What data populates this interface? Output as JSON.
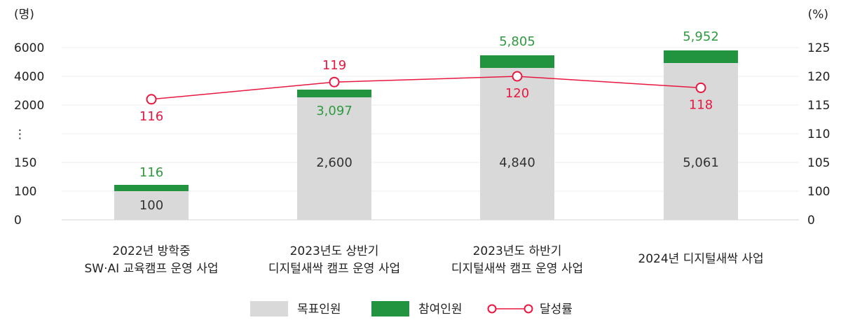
{
  "chart_data": {
    "type": "bar",
    "y_unit_left": "(명)",
    "y_unit_right": "(%)",
    "left_ticks": [
      "6000",
      "4000",
      "2000",
      "⋮",
      "150",
      "100",
      "0"
    ],
    "right_ticks": [
      "125",
      "120",
      "115",
      "110",
      "105",
      "100",
      "0"
    ],
    "y_axis_break": true,
    "grid": true,
    "legend_position": "bottom-center",
    "categories": [
      [
        "2022년 방학중",
        "SW·AI 교육캠프 운영 사업"
      ],
      [
        "2023년도 상반기",
        "디지털새싹 캠프 운영 사업"
      ],
      [
        "2023년도 하반기",
        "디지털새싹 캠프 운영 사업"
      ],
      [
        "2024년 디지털새싹 사업"
      ]
    ],
    "series": [
      {
        "name": "목표인원",
        "kind": "bar",
        "color": "#d9d9d9",
        "values": [
          100,
          2600,
          4840,
          5061
        ],
        "labels": [
          "100",
          "2,600",
          "4,840",
          "5,061"
        ]
      },
      {
        "name": "참여인원",
        "kind": "bar",
        "color": "#22943f",
        "values": [
          116,
          3097,
          5805,
          5952
        ],
        "labels": [
          "116",
          "3,097",
          "5,805",
          "5,952"
        ]
      },
      {
        "name": "달성률",
        "kind": "line",
        "color": "#e8173f",
        "axis": "right",
        "values": [
          116,
          119,
          120,
          118
        ],
        "labels": [
          "116",
          "119",
          "120",
          "118"
        ]
      }
    ]
  }
}
